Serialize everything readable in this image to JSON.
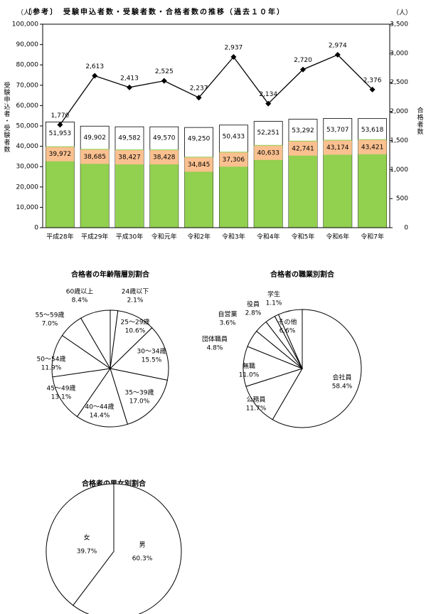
{
  "chart_data": [
    {
      "type": "bar",
      "title": "〔参考〕　受験申込者数・受験者数・合格者数の推移（過去１０年）",
      "y_unit": "（人）",
      "y2_unit": "（人）",
      "ylabel": "受験申込者・受験者数",
      "y2label": "合格者数",
      "categories": [
        "平成28年",
        "平成29年",
        "平成30年",
        "令和元年",
        "令和2年",
        "令和3年",
        "令和4年",
        "令和5年",
        "令和6年",
        "令和7年"
      ],
      "series": [
        {
          "type": "bar",
          "color": "#ffffff",
          "values": [
            51953,
            49902,
            49582,
            49570,
            49250,
            50433,
            52251,
            53292,
            53707,
            53618
          ],
          "value_labels": [
            "51,953",
            "49,902",
            "49,582",
            "49,570",
            "49,250",
            "50,433",
            "52,251",
            "53,292",
            "53,707",
            "53,618"
          ]
        },
        {
          "type": "bar",
          "color": "#92d050",
          "label_color": "#fac090",
          "values": [
            39972,
            38685,
            38427,
            38428,
            34845,
            37306,
            40633,
            42741,
            43174,
            43421
          ],
          "value_labels": [
            "39,972",
            "38,685",
            "38,427",
            "38,428",
            "34,845",
            "37,306",
            "40,633",
            "42,741",
            "43,174",
            "43,421"
          ]
        },
        {
          "type": "line",
          "color": "#000000",
          "axis": "y2",
          "values": [
            1770,
            2613,
            2413,
            2525,
            2237,
            2937,
            2134,
            2720,
            2974,
            2376
          ],
          "value_labels": [
            "1,770",
            "2,613",
            "2,413",
            "2,525",
            "2,237",
            "2,937",
            "2,134",
            "2,720",
            "2,974",
            "2,376"
          ]
        }
      ],
      "ylim": [
        0,
        100000
      ],
      "yticks": [
        0,
        {
          "value": 10000,
          "label": "10,000"
        },
        {
          "value": 20000,
          "label": "20,000"
        },
        {
          "value": 30000,
          "label": "30,000"
        },
        {
          "value": 40000,
          "label": "40,000"
        },
        {
          "value": 50000,
          "label": "50,000"
        },
        {
          "value": 60000,
          "label": "60,000"
        },
        {
          "value": 70000,
          "label": "70,000"
        },
        {
          "value": 80000,
          "label": "80,000"
        },
        {
          "value": 90000,
          "label": "90,000"
        },
        {
          "value": 100000,
          "label": "100,000"
        }
      ],
      "y2lim": [
        0,
        3500
      ],
      "y2ticks": [
        0,
        500,
        {
          "value": 1000,
          "label": "1,000"
        },
        {
          "value": 1500,
          "label": "1,500"
        },
        {
          "value": 2000,
          "label": "2,000"
        },
        {
          "value": 2500,
          "label": "2,500"
        },
        {
          "value": 3000,
          "label": "3,000"
        },
        {
          "value": 3500,
          "label": "3,500"
        }
      ]
    },
    {
      "type": "pie",
      "title": "合格者の年齢階層別割合",
      "color": "#ffffff",
      "categories": [
        "24歳以下",
        "25～29歳",
        "30～34歳",
        "35～39歳",
        "40～44歳",
        "45～49歳",
        "50～54歳",
        "55～59歳",
        "60歳以上"
      ],
      "values": [
        2.1,
        10.6,
        15.5,
        17.0,
        14.4,
        13.1,
        11.9,
        7.0,
        8.4
      ],
      "value_labels": [
        "2.1%",
        "10.6%",
        "15.5%",
        "17.0%",
        "14.4%",
        "13.1%",
        "11.9%",
        "7.0%",
        "8.4%"
      ]
    },
    {
      "type": "pie",
      "title": "合格者の職業別割合",
      "color": "#ffffff",
      "categories": [
        "会社員",
        "公務員",
        "無職",
        "団体職員",
        "自営業",
        "役員",
        "学生",
        "その他"
      ],
      "values": [
        58.4,
        11.7,
        11.0,
        4.8,
        3.6,
        2.8,
        1.1,
        6.6
      ],
      "value_labels": [
        "58.4%",
        "11.7%",
        "11.0%",
        "4.8%",
        "3.6%",
        "2.8%",
        "1.1%",
        "6.6%"
      ]
    },
    {
      "type": "pie",
      "title": "合格者の男女別割合",
      "color": "#ffffff",
      "categories": [
        "男",
        "女"
      ],
      "values": [
        60.3,
        39.7
      ],
      "value_labels": [
        "60.3%",
        "39.7%"
      ]
    }
  ]
}
